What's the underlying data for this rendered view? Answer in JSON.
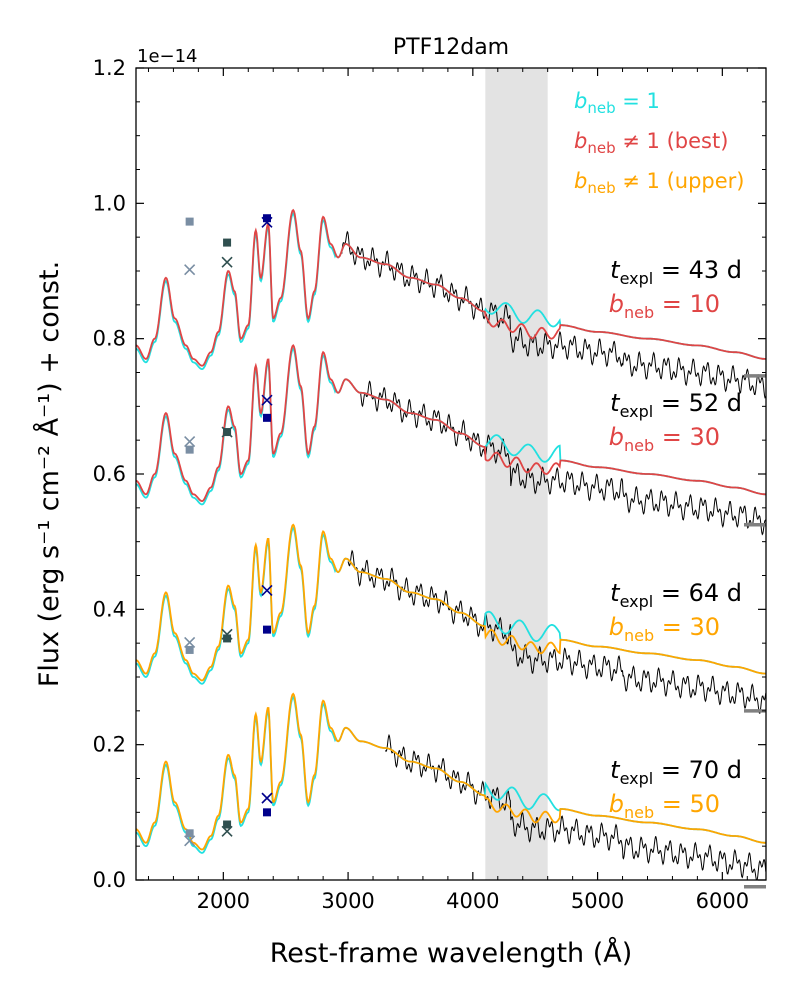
{
  "chart_data": {
    "type": "line",
    "title": "PTF12dam",
    "xlabel": "Rest-frame wavelength (Å)",
    "ylabel": "Flux (erg s⁻¹ cm⁻² Å⁻¹) + const.",
    "scale_label": "1e−14",
    "xlim": [
      1300,
      6350
    ],
    "ylim": [
      0.0,
      1.2
    ],
    "xticks": [
      2000,
      3000,
      4000,
      5000,
      6000
    ],
    "xtick_labels": [
      "2000",
      "3000",
      "4000",
      "5000",
      "6000"
    ],
    "yticks": [
      0.0,
      0.2,
      0.4,
      0.6,
      0.8,
      1.0,
      1.2
    ],
    "ytick_labels": [
      "0.0",
      "0.2",
      "0.4",
      "0.6",
      "0.8",
      "1.0",
      "1.2"
    ],
    "shaded_band": [
      4100,
      4600
    ],
    "colors": {
      "unity": "#22e0e0",
      "best": "#e04545",
      "upper": "#ffa500",
      "observed": "#000000",
      "band": "#e3e3e3",
      "ref_mark": "#808080",
      "m1": "#7a8ea3",
      "m2": "#2f4f4f",
      "m3": "#00008b"
    },
    "legend": [
      {
        "label": "b",
        "sub": "neb",
        "rest": " = 1",
        "color": "#22e0e0"
      },
      {
        "label": "b",
        "sub": "neb",
        "rest": " ≠ 1 (best)",
        "color": "#e04545"
      },
      {
        "label": "b",
        "sub": "neb",
        "rest": " ≠ 1 (upper)",
        "color": "#ffa500"
      }
    ],
    "epochs": [
      {
        "time_label": "t",
        "time_sub": "expl",
        "time_text": " = 43 d",
        "bneb_label": "b",
        "bneb_sub": "neb",
        "bneb_text": " = 10",
        "model_color": "#e04545",
        "offset": 0.56,
        "ref_level": 0.745,
        "markers": [
          {
            "x": 1730,
            "sq": 0.973,
            "cross": 0.902,
            "c": "m1"
          },
          {
            "x": 2030,
            "sq": 0.942,
            "cross": 0.913,
            "c": "m2"
          },
          {
            "x": 2350,
            "sq": 0.978,
            "cross": 0.972,
            "c": "m3"
          }
        ]
      },
      {
        "time_label": "t",
        "time_sub": "expl",
        "time_text": " = 52 d",
        "bneb_label": "b",
        "bneb_sub": "neb",
        "bneb_text": " = 30",
        "model_color": "#e04545",
        "offset": 0.36,
        "ref_level": 0.525,
        "markers": [
          {
            "x": 1730,
            "sq": 0.636,
            "cross": 0.648,
            "c": "m1"
          },
          {
            "x": 2030,
            "sq": 0.662,
            "cross": 0.662,
            "c": "m2"
          },
          {
            "x": 2350,
            "sq": 0.683,
            "cross": 0.709,
            "c": "m3"
          }
        ]
      },
      {
        "time_label": "t",
        "time_sub": "expl",
        "time_text": " = 64 d",
        "bneb_label": "b",
        "bneb_sub": "neb",
        "bneb_text": " = 30",
        "model_color": "#ffa500",
        "offset": 0.095,
        "ref_level": 0.25,
        "markers": [
          {
            "x": 1730,
            "sq": 0.34,
            "cross": 0.351,
            "c": "m1"
          },
          {
            "x": 2030,
            "sq": 0.357,
            "cross": 0.363,
            "c": "m2"
          },
          {
            "x": 2350,
            "sq": 0.37,
            "cross": 0.428,
            "c": "m3"
          }
        ]
      },
      {
        "time_label": "t",
        "time_sub": "expl",
        "time_text": " = 70 d",
        "bneb_label": "b",
        "bneb_sub": "neb",
        "bneb_text": " = 50",
        "model_color": "#ffa500",
        "offset": -0.155,
        "ref_level": -0.01,
        "markers": [
          {
            "x": 1730,
            "sq": 0.069,
            "cross": 0.058,
            "c": "m1"
          },
          {
            "x": 2030,
            "sq": 0.082,
            "cross": 0.072,
            "c": "m2"
          },
          {
            "x": 2350,
            "sq": 0.1,
            "cross": 0.121,
            "c": "m3"
          }
        ]
      }
    ],
    "template_spectrum": {
      "wavelength": [
        1300,
        1380,
        1450,
        1540,
        1610,
        1700,
        1760,
        1830,
        1900,
        1960,
        2040,
        2090,
        2140,
        2200,
        2260,
        2300,
        2360,
        2400,
        2460,
        2560,
        2620,
        2680,
        2730,
        2800,
        2860,
        2920,
        2980,
        3100,
        3300,
        3500,
        3700,
        3900,
        4100,
        4300,
        4500,
        4700,
        5000,
        5400,
        5800,
        6100,
        6350
      ],
      "flux": [
        0.23,
        0.21,
        0.24,
        0.33,
        0.27,
        0.23,
        0.21,
        0.2,
        0.22,
        0.25,
        0.34,
        0.31,
        0.24,
        0.26,
        0.4,
        0.33,
        0.41,
        0.27,
        0.3,
        0.43,
        0.37,
        0.27,
        0.31,
        0.42,
        0.38,
        0.36,
        0.38,
        0.36,
        0.35,
        0.33,
        0.32,
        0.3,
        0.28,
        0.27,
        0.26,
        0.26,
        0.25,
        0.24,
        0.23,
        0.22,
        0.21
      ]
    }
  }
}
